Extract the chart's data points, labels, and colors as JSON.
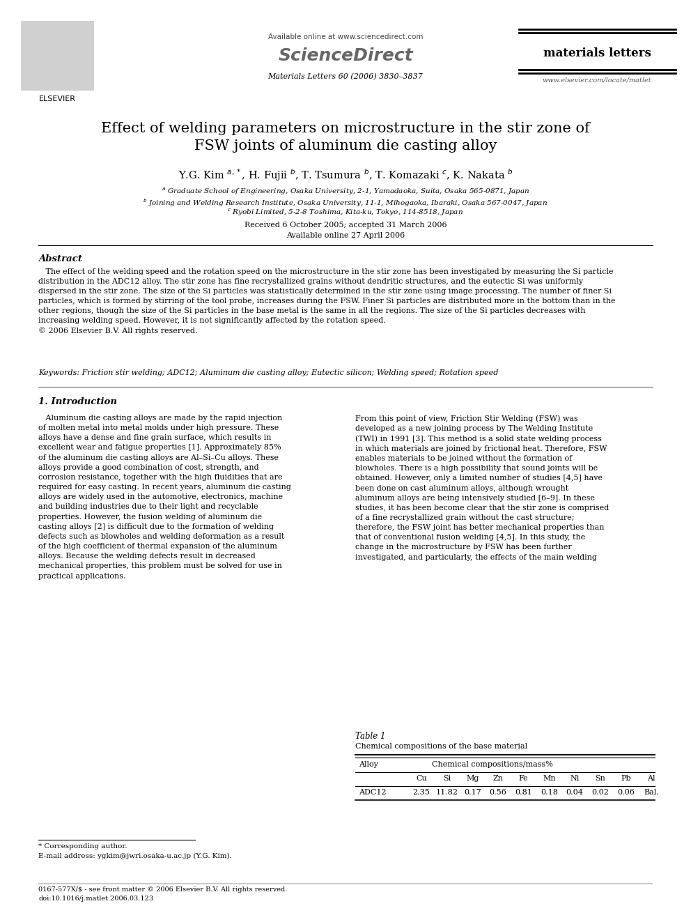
{
  "title_line1": "Effect of welding parameters on microstructure in the stir zone of",
  "title_line2": "FSW joints of aluminum die casting alloy",
  "authors_raw": "Y.G. Kim $^{a,*}$, H. Fujii $^{b}$, T. Tsumura $^{b}$, T. Komazaki $^{c}$, K. Nakata $^{b}$",
  "affil_a": "$^{a}$ Graduate School of Engineering, Osaka University, 2-1, Yamadaoka, Suita, Osaka 565-0871, Japan",
  "affil_b": "$^{b}$ Joining and Welding Research Institute, Osaka University, 11-1, Mihogaoka, Ibaraki, Osaka 567-0047, Japan",
  "affil_c": "$^{c}$ Ryobi Limited, 5-2-8 Toshima, Kita-ku, Tokyo, 114-8518, Japan",
  "received": "Received 6 October 2005; accepted 31 March 2006",
  "available": "Available online 27 April 2006",
  "journal_name": "materials letters",
  "journal_info": "Materials Letters 60 (2006) 3830–3837",
  "available_online": "Available online at www.sciencedirect.com",
  "website": "www.elsevier.com/locate/matlet",
  "sciencedirect": "ScienceDirect",
  "abstract_title": "Abstract",
  "abstract_body": "   The effect of the welding speed and the rotation speed on the microstructure in the stir zone has been investigated by measuring the Si particle\ndistribution in the ADC12 alloy. The stir zone has fine recrystallized grains without dendritic structures, and the eutectic Si was uniformly\ndispersed in the stir zone. The size of the Si particles was statistically determined in the stir zone using image processing. The number of finer Si\nparticles, which is formed by stirring of the tool probe, increases during the FSW. Finer Si particles are distributed more in the bottom than in the\nother regions, though the size of the Si particles in the base metal is the same in all the regions. The size of the Si particles decreases with\nincreasing welding speed. However, it is not significantly affected by the rotation speed.\n© 2006 Elsevier B.V. All rights reserved.",
  "keywords": "Keywords: Friction stir welding; ADC12; Aluminum die casting alloy; Eutectic silicon; Welding speed; Rotation speed",
  "section1_title": "1. Introduction",
  "left_col_text": "   Aluminum die casting alloys are made by the rapid injection\nof molten metal into metal molds under high pressure. These\nalloys have a dense and fine grain surface, which results in\nexcellent wear and fatigue properties [1]. Approximately 85%\nof the aluminum die casting alloys are Al–Si–Cu alloys. These\nalloys provide a good combination of cost, strength, and\ncorrosion resistance, together with the high fluidities that are\nrequired for easy casting. In recent years, aluminum die casting\nalloys are widely used in the automotive, electronics, machine\nand building industries due to their light and recyclable\nproperties. However, the fusion welding of aluminum die\ncasting alloys [2] is difficult due to the formation of welding\ndefects such as blowholes and welding deformation as a result\nof the high coefficient of thermal expansion of the aluminum\nalloys. Because the welding defects result in decreased\nmechanical properties, this problem must be solved for use in\npractical applications.",
  "right_col_text": "From this point of view, Friction Stir Welding (FSW) was\ndeveloped as a new joining process by The Welding Institute\n(TWI) in 1991 [3]. This method is a solid state welding process\nin which materials are joined by frictional heat. Therefore, FSW\nenables materials to be joined without the formation of\nblowholes. There is a high possibility that sound joints will be\nobtained. However, only a limited number of studies [4,5] have\nbeen done on cast aluminum alloys, although wrought\naluminum alloys are being intensively studied [6–9]. In these\nstudies, it has been become clear that the stir zone is comprised\nof a fine recrystallized grain without the cast structure;\ntherefore, the FSW joint has better mechanical properties than\nthat of conventional fusion welding [4,5]. In this study, the\nchange in the microstructure by FSW has been further\ninvestigated, and particularly, the effects of the main welding",
  "table1_title": "Table 1",
  "table1_subtitle": "Chemical compositions of the base material",
  "table1_col1_header": "Alloy",
  "table1_col2_header": "Chemical compositions/mass%",
  "table1_subheaders": [
    "Cu",
    "Si",
    "Mg",
    "Zn",
    "Fe",
    "Mn",
    "Ni",
    "Sn",
    "Pb",
    "Al"
  ],
  "table1_alloy": "ADC12",
  "table1_values": [
    "2.35",
    "11.82",
    "0.17",
    "0.56",
    "0.81",
    "0.18",
    "0.04",
    "0.02",
    "0.06",
    "Bal."
  ],
  "footnote1": "* Corresponding author.",
  "footnote2": "E-mail address: ygkim@jwri.osaka-u.ac.jp (Y.G. Kim).",
  "footnote3": "0167-577X/$ - see front matter © 2006 Elsevier B.V. All rights reserved.",
  "footnote4": "doi:10.1016/j.matlet.2006.03.123",
  "bg_color": "#ffffff"
}
